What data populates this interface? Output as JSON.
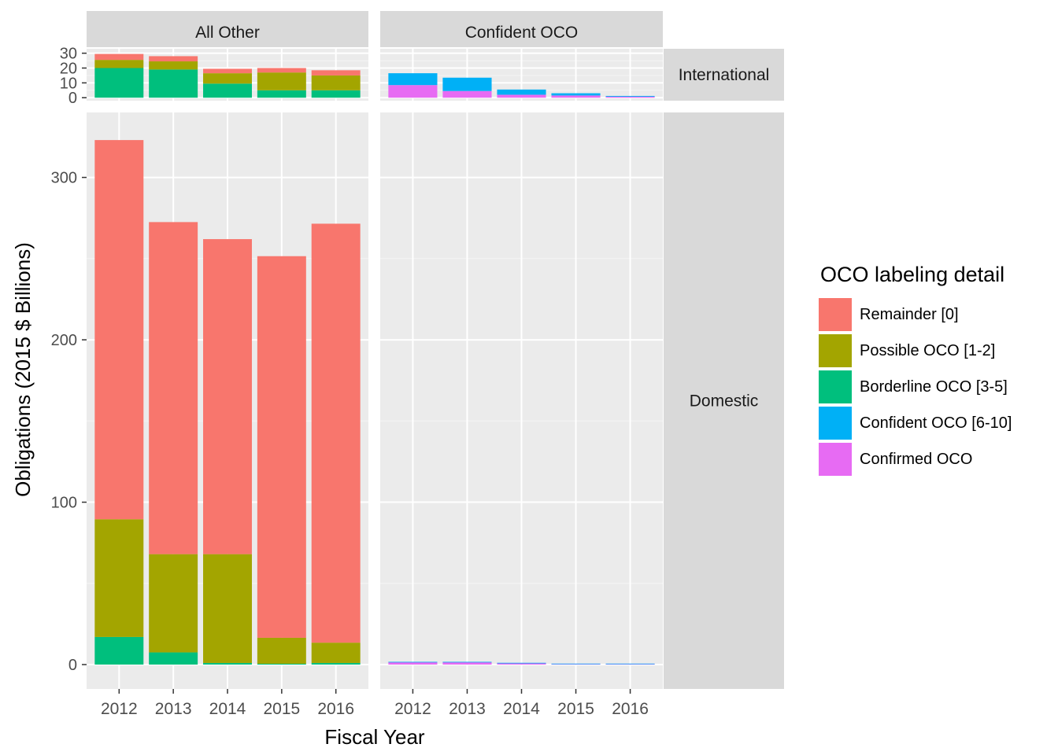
{
  "chart_data": {
    "type": "bar",
    "stacked": true,
    "xlabel": "Fiscal Year",
    "ylabel": "Obligations (2015 $ Billions)",
    "categories": [
      "2012",
      "2013",
      "2014",
      "2015",
      "2016"
    ],
    "facet_columns": [
      "All Other",
      "Confident OCO"
    ],
    "facet_rows": [
      "International",
      "Domestic"
    ],
    "legend": {
      "title": "OCO labeling detail",
      "placement": "right",
      "entries": [
        {
          "name": "Remainder [0]",
          "color": "#F8766D"
        },
        {
          "name": "Possible OCO [1-2]",
          "color": "#A3A500"
        },
        {
          "name": "Borderline OCO [3-5]",
          "color": "#00BF7D"
        },
        {
          "name": "Confident OCO [6-10]",
          "color": "#00B0F6"
        },
        {
          "name": "Confirmed OCO",
          "color": "#E76BF3"
        }
      ]
    },
    "panels": [
      {
        "row": "International",
        "col": "All Other",
        "ylim": [
          -2,
          33
        ],
        "yticks": [
          0,
          10,
          20,
          30
        ],
        "series": [
          {
            "name": "Borderline OCO [3-5]",
            "values": [
              20,
              19,
              9.5,
              5,
              5
            ]
          },
          {
            "name": "Possible OCO [1-2]",
            "values": [
              5.5,
              5.5,
              7,
              12,
              10
            ]
          },
          {
            "name": "Remainder [0]",
            "values": [
              4,
              3.5,
              3,
              3,
              3.5
            ]
          }
        ]
      },
      {
        "row": "International",
        "col": "Confident OCO",
        "ylim": [
          -2,
          33
        ],
        "yticks": [
          0,
          10,
          20,
          30
        ],
        "series": [
          {
            "name": "Confirmed OCO",
            "values": [
              8.5,
              4.5,
              2,
              1.5,
              0.7
            ]
          },
          {
            "name": "Confident OCO [6-10]",
            "values": [
              8,
              9,
              3.5,
              1.5,
              0.5
            ]
          }
        ]
      },
      {
        "row": "Domestic",
        "col": "All Other",
        "ylim": [
          -15,
          340
        ],
        "yticks": [
          0,
          100,
          200,
          300
        ],
        "series": [
          {
            "name": "Borderline OCO [3-5]",
            "values": [
              17,
              7.5,
              1,
              0.5,
              1
            ]
          },
          {
            "name": "Possible OCO [1-2]",
            "values": [
              72.5,
              60.5,
              67,
              16,
              12.5
            ]
          },
          {
            "name": "Remainder [0]",
            "values": [
              233.5,
              204.5,
              194,
              235,
              258
            ]
          }
        ]
      },
      {
        "row": "Domestic",
        "col": "Confident OCO",
        "ylim": [
          -15,
          340
        ],
        "yticks": [
          0,
          100,
          200,
          300
        ],
        "series": [
          {
            "name": "Confirmed OCO",
            "values": [
              1.5,
              1.5,
              1,
              0.5,
              0.5
            ]
          },
          {
            "name": "Confident OCO [6-10]",
            "values": [
              0.2,
              0.2,
              0.1,
              0.1,
              0.1
            ]
          }
        ]
      }
    ]
  }
}
